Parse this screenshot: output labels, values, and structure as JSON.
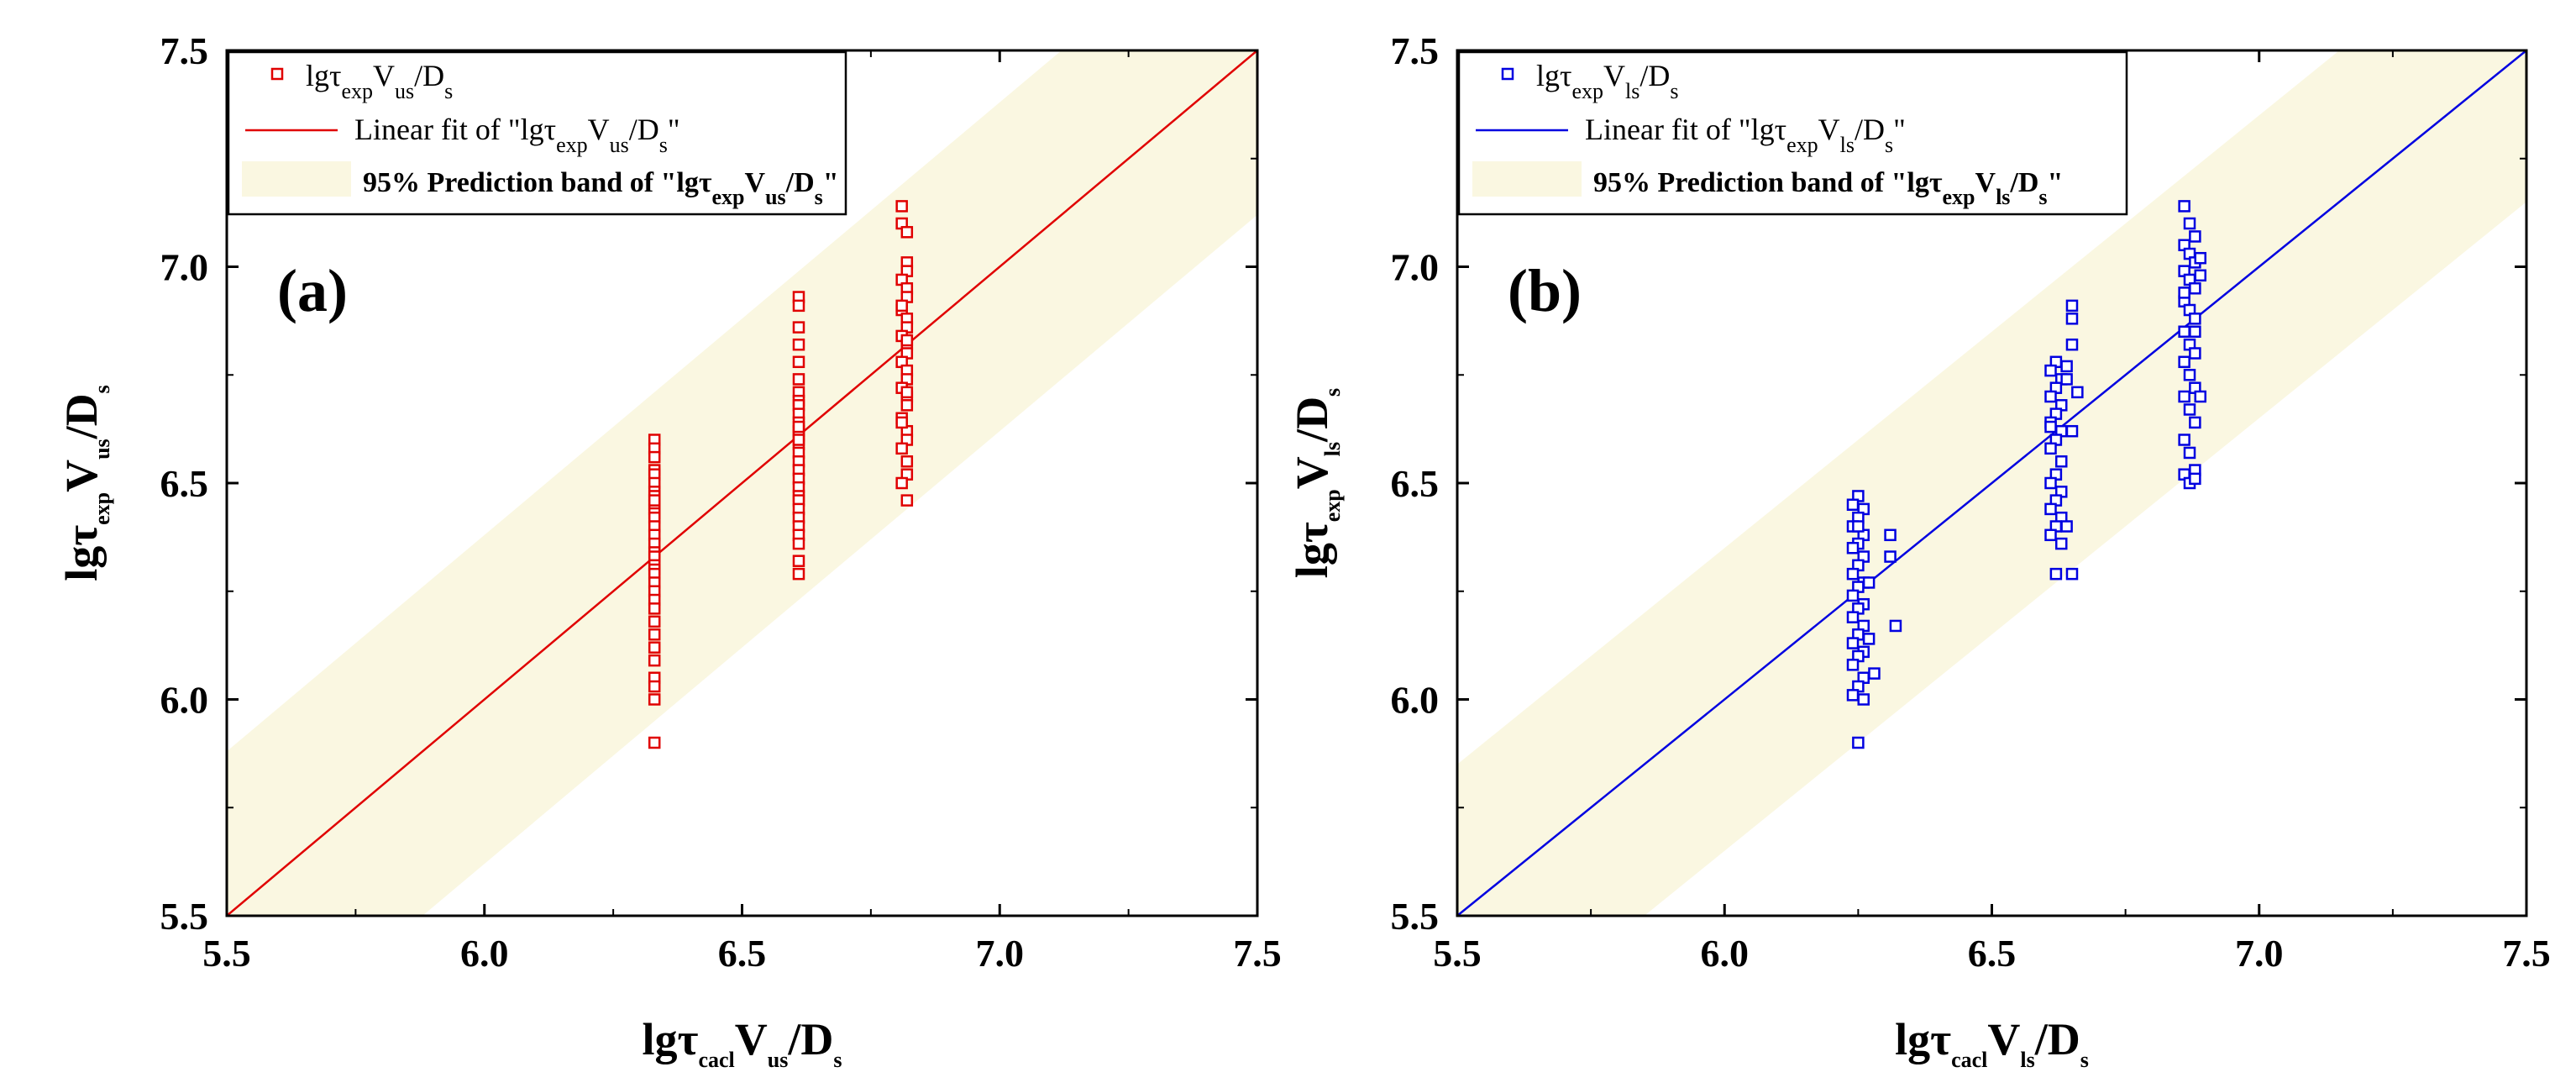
{
  "colors": {
    "band": "#faf7e1",
    "panel_a": "#e00000",
    "panel_b": "#0000e0",
    "axis": "#000000"
  },
  "chart_data": [
    {
      "type": "scatter",
      "panel_label": "(a)",
      "xlim": [
        5.5,
        7.5
      ],
      "ylim": [
        5.5,
        7.5
      ],
      "xticks": [
        "5.5",
        "6.0",
        "6.5",
        "7.0",
        "7.5"
      ],
      "yticks": [
        "5.5",
        "6.0",
        "6.5",
        "7.0",
        "7.5"
      ],
      "xlabel": {
        "base": "lgτ",
        "sub1": "cacl",
        "mid": "V",
        "sub2": "us",
        "tail": "/D",
        "sub3": "s"
      },
      "ylabel": {
        "base": "lgτ",
        "sub1": "exp",
        "mid": "V",
        "sub2": "us",
        "tail": "/D",
        "sub3": "s"
      },
      "legend": {
        "scatter": {
          "base": "lgτ",
          "sub1": "exp",
          "mid": "V",
          "sub2": "us",
          "tail": "/D",
          "sub3": "s"
        },
        "fit": {
          "prefix": "Linear fit of \"lgτ",
          "sub1": "exp",
          "mid": "V",
          "sub2": "us",
          "tail": "/D",
          "sub3": "s",
          "end": "\""
        },
        "band": {
          "prefix": "95% Prediction band of \"lgτ",
          "sub1": "exp",
          "mid": "V",
          "sub2": "us",
          "tail": "/D",
          "sub3": "s",
          "end": "\""
        }
      },
      "fit_line": [
        [
          5.5,
          5.5
        ],
        [
          7.5,
          7.5
        ]
      ],
      "band_halfwidth": 0.38,
      "series": [
        {
          "name": "lgτexpVus/Ds",
          "x": [
            6.33,
            6.33,
            6.33,
            6.33,
            6.33,
            6.33,
            6.33,
            6.33,
            6.33,
            6.33,
            6.33,
            6.33,
            6.33,
            6.33,
            6.33,
            6.33,
            6.33,
            6.33,
            6.33,
            6.33,
            6.33,
            6.33,
            6.33,
            6.33,
            6.33,
            6.33,
            6.33,
            6.33,
            6.33,
            6.33,
            6.33,
            6.33,
            6.33
          ],
          "y": [
            6.6,
            6.58,
            6.56,
            6.53,
            6.52,
            6.5,
            6.48,
            6.47,
            6.45,
            6.44,
            6.43,
            6.42,
            6.4,
            6.38,
            6.36,
            6.34,
            6.33,
            6.31,
            6.3,
            6.29,
            6.27,
            6.25,
            6.23,
            6.21,
            6.18,
            6.15,
            6.12,
            6.09,
            6.05,
            6.03,
            6.0,
            5.9,
            6.46
          ]
        },
        {
          "name": "lgτexpVus/Ds",
          "x": [
            6.61,
            6.61,
            6.61,
            6.61,
            6.61,
            6.61,
            6.61,
            6.61,
            6.61,
            6.61,
            6.61,
            6.61,
            6.61,
            6.61,
            6.61,
            6.61,
            6.61,
            6.61,
            6.61,
            6.61,
            6.61,
            6.61,
            6.61,
            6.61,
            6.61,
            6.61,
            6.61,
            6.61,
            6.61,
            6.61
          ],
          "y": [
            6.93,
            6.91,
            6.86,
            6.82,
            6.78,
            6.74,
            6.71,
            6.69,
            6.68,
            6.66,
            6.64,
            6.62,
            6.61,
            6.59,
            6.57,
            6.55,
            6.53,
            6.51,
            6.49,
            6.47,
            6.46,
            6.44,
            6.42,
            6.4,
            6.38,
            6.36,
            6.32,
            6.29,
            6.63,
            6.6
          ]
        },
        {
          "name": "lgτexpVus/Ds",
          "x": [
            6.81,
            6.81,
            6.82,
            6.82,
            6.81,
            6.82,
            6.82,
            6.81,
            6.82,
            6.82,
            6.81,
            6.82,
            6.82,
            6.81,
            6.82,
            6.82,
            6.81,
            6.82,
            6.82,
            6.81,
            6.82,
            6.82,
            6.81,
            6.82,
            6.82,
            6.81,
            6.82,
            6.82,
            6.81,
            6.82,
            6.82,
            6.81
          ],
          "y": [
            7.14,
            7.1,
            7.01,
            6.99,
            6.97,
            6.95,
            6.93,
            6.9,
            6.88,
            6.86,
            6.84,
            6.82,
            6.8,
            6.78,
            6.76,
            6.74,
            6.72,
            6.7,
            6.68,
            6.65,
            6.62,
            6.6,
            6.58,
            6.55,
            6.52,
            6.5,
            6.46,
            7.08,
            6.91,
            6.83,
            6.71,
            6.64
          ]
        }
      ]
    },
    {
      "type": "scatter",
      "panel_label": "(b)",
      "xlim": [
        5.5,
        7.5
      ],
      "ylim": [
        5.5,
        7.5
      ],
      "xticks": [
        "5.5",
        "6.0",
        "6.5",
        "7.0",
        "7.5"
      ],
      "yticks": [
        "5.5",
        "6.0",
        "6.5",
        "7.0",
        "7.5"
      ],
      "xlabel": {
        "base": "lgτ",
        "sub1": "cacl",
        "mid": "V",
        "sub2": "ls",
        "tail": "/D",
        "sub3": "s"
      },
      "ylabel": {
        "base": "lgτ",
        "sub1": "exp",
        "mid": "V",
        "sub2": "ls",
        "tail": "/D",
        "sub3": "s"
      },
      "legend": {
        "scatter": {
          "base": "lgτ",
          "sub1": "exp",
          "mid": "V",
          "sub2": "ls",
          "tail": "/D",
          "sub3": "s"
        },
        "fit": {
          "prefix": "Linear fit of \"lgτ",
          "sub1": "exp",
          "mid": "V",
          "sub2": "ls",
          "tail": "/D",
          "sub3": "s",
          "end": "\""
        },
        "band": {
          "prefix": "95% Prediction band of \"lgτ",
          "sub1": "exp",
          "mid": "V",
          "sub2": "ls",
          "tail": "/D",
          "sub3": "s",
          "end": "\""
        }
      },
      "fit_line": [
        [
          5.5,
          5.5
        ],
        [
          7.5,
          7.5
        ]
      ],
      "band_halfwidth": 0.35,
      "series": [
        {
          "name": "lgτexpVls/Ds",
          "x": [
            6.25,
            6.24,
            6.26,
            6.25,
            6.24,
            6.26,
            6.25,
            6.24,
            6.26,
            6.25,
            6.24,
            6.26,
            6.25,
            6.24,
            6.26,
            6.25,
            6.24,
            6.26,
            6.25,
            6.24,
            6.26,
            6.25,
            6.24,
            6.26,
            6.25,
            6.24,
            6.26,
            6.25,
            6.27,
            6.27,
            6.28,
            6.31,
            6.31,
            6.32,
            6.25
          ],
          "y": [
            6.47,
            6.45,
            6.44,
            6.42,
            6.4,
            6.38,
            6.36,
            6.35,
            6.33,
            6.31,
            6.29,
            6.27,
            6.26,
            6.24,
            6.22,
            6.21,
            6.19,
            6.17,
            6.15,
            6.13,
            6.11,
            6.1,
            6.08,
            6.05,
            6.03,
            6.01,
            6.0,
            6.4,
            6.27,
            6.14,
            6.06,
            6.38,
            6.33,
            6.17,
            5.9
          ]
        },
        {
          "name": "lgτexpVls/Ds",
          "x": [
            6.62,
            6.61,
            6.63,
            6.62,
            6.61,
            6.63,
            6.62,
            6.61,
            6.63,
            6.62,
            6.61,
            6.63,
            6.62,
            6.61,
            6.63,
            6.62,
            6.61,
            6.63,
            6.62,
            6.61,
            6.63,
            6.62,
            6.61,
            6.65,
            6.65,
            6.65,
            6.64,
            6.64,
            6.66,
            6.65,
            6.64,
            6.65
          ],
          "y": [
            6.78,
            6.76,
            6.74,
            6.72,
            6.7,
            6.68,
            6.66,
            6.64,
            6.62,
            6.6,
            6.58,
            6.55,
            6.52,
            6.5,
            6.48,
            6.46,
            6.44,
            6.42,
            6.4,
            6.38,
            6.36,
            6.29,
            6.63,
            6.91,
            6.88,
            6.82,
            6.77,
            6.74,
            6.71,
            6.62,
            6.4,
            6.29
          ]
        },
        {
          "name": "lgτexpVls/Ds",
          "x": [
            6.86,
            6.87,
            6.88,
            6.86,
            6.87,
            6.88,
            6.86,
            6.87,
            6.88,
            6.86,
            6.87,
            6.88,
            6.86,
            6.87,
            6.88,
            6.86,
            6.87,
            6.88,
            6.86,
            6.87,
            6.88,
            6.86,
            6.87,
            6.88,
            6.86,
            6.87,
            6.88,
            6.89,
            6.89,
            6.86,
            6.88,
            6.89
          ],
          "y": [
            7.14,
            7.1,
            7.07,
            7.05,
            7.03,
            7.01,
            6.99,
            6.97,
            6.95,
            6.92,
            6.9,
            6.88,
            6.85,
            6.82,
            6.8,
            6.78,
            6.75,
            6.72,
            6.7,
            6.67,
            6.64,
            6.6,
            6.57,
            6.53,
            6.52,
            6.5,
            6.51,
            7.02,
            6.98,
            6.94,
            6.85,
            6.7
          ]
        }
      ]
    }
  ]
}
